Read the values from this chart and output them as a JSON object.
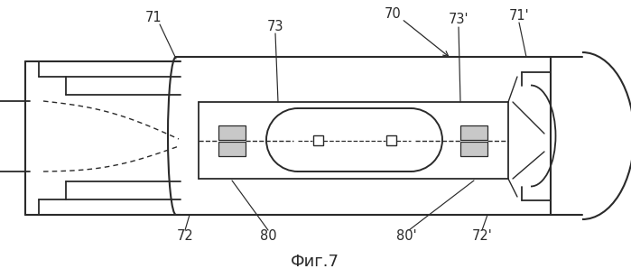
{
  "bg_color": "#ffffff",
  "line_color": "#2a2a2a",
  "label_color": "#2a2a2a",
  "title": "Фиг.7",
  "figsize": [
    6.99,
    3.08
  ],
  "dpi": 100
}
